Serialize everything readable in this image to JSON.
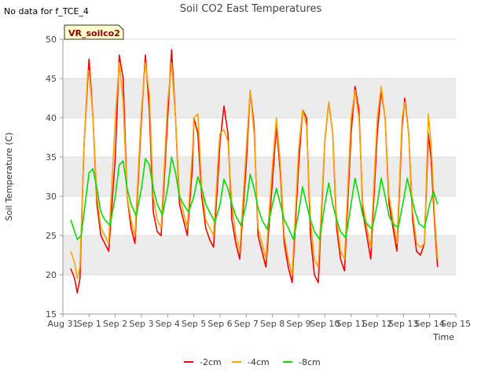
{
  "header": {
    "nodata_note": "No data for f_TCE_4"
  },
  "chart_data": {
    "type": "line",
    "title": "Soil CO2 East Temperatures",
    "xlabel": "Time",
    "ylabel": "Soil Temperature (C)",
    "badge": "VR_soilco2",
    "ylim": [
      15,
      50
    ],
    "yticks": [
      15,
      20,
      25,
      30,
      35,
      40,
      45,
      50
    ],
    "xlim": [
      0,
      15
    ],
    "xtick_positions": [
      0,
      1,
      2,
      3,
      4,
      5,
      6,
      7,
      8,
      9,
      10,
      11,
      12,
      13,
      14,
      15
    ],
    "xtick_labels": [
      "Aug 31",
      "Sep 1",
      "Sep 2",
      "Sep 3",
      "Sep 4",
      "Sep 5",
      "Sep 6",
      "Sep 7",
      "Sep 8",
      "Sep 9",
      "Sep 10",
      "Sep 11",
      "Sep 12",
      "Sep 13",
      "Sep 14",
      "Sep 15"
    ],
    "grid": true,
    "legend_position": "bottom-center",
    "series": [
      {
        "name": "-2cm",
        "color": "#ff0000",
        "x": [
          0.3,
          0.45,
          0.55,
          0.65,
          0.8,
          0.95,
          1.0,
          1.15,
          1.3,
          1.45,
          1.6,
          1.75,
          2.0,
          2.15,
          2.3,
          2.45,
          2.6,
          2.75,
          3.0,
          3.15,
          3.3,
          3.45,
          3.6,
          3.75,
          4.0,
          4.15,
          4.3,
          4.45,
          4.6,
          4.75,
          4.95,
          5.0,
          5.15,
          5.3,
          5.45,
          5.6,
          5.75,
          5.95,
          6.0,
          6.15,
          6.3,
          6.45,
          6.6,
          6.75,
          7.0,
          7.15,
          7.3,
          7.45,
          7.6,
          7.75,
          8.0,
          8.15,
          8.3,
          8.45,
          8.6,
          8.75,
          9.0,
          9.15,
          9.3,
          9.45,
          9.6,
          9.75,
          10.0,
          10.15,
          10.3,
          10.45,
          10.6,
          10.75,
          11.0,
          11.15,
          11.3,
          11.45,
          11.6,
          11.75,
          12.0,
          12.15,
          12.3,
          12.45,
          12.6,
          12.75,
          12.95,
          13.05,
          13.2,
          13.35,
          13.5,
          13.65,
          13.8,
          13.95,
          14.05,
          14.2,
          14.3
        ],
        "y": [
          20.8,
          19.5,
          17.7,
          19.5,
          36,
          45,
          47.5,
          40,
          29,
          25,
          24,
          23,
          35,
          48,
          45,
          30,
          26,
          24,
          40,
          48,
          41,
          28,
          25.5,
          25,
          40,
          48.7,
          40,
          29,
          27,
          25,
          34,
          40,
          38,
          30,
          26,
          24.5,
          23.5,
          34,
          37,
          41.5,
          38,
          27,
          24,
          22,
          34,
          43.5,
          39,
          25,
          23,
          21,
          32,
          39,
          33,
          24,
          21,
          19,
          34,
          41,
          40,
          25,
          20,
          19,
          37,
          42,
          38,
          26,
          22,
          20.5,
          38,
          44,
          41,
          28,
          25,
          22,
          38,
          43.5,
          40,
          29,
          26,
          23,
          39,
          42.5,
          38,
          27,
          23,
          22.5,
          24,
          38,
          35,
          26,
          21
        ]
      },
      {
        "name": "-4cm",
        "color": "#ffa500",
        "x": [
          0.3,
          0.45,
          0.55,
          0.65,
          0.8,
          0.95,
          1.0,
          1.15,
          1.3,
          1.45,
          1.6,
          1.75,
          2.0,
          2.15,
          2.3,
          2.45,
          2.6,
          2.75,
          3.0,
          3.15,
          3.3,
          3.45,
          3.6,
          3.75,
          4.0,
          4.15,
          4.3,
          4.45,
          4.6,
          4.75,
          4.95,
          5.0,
          5.15,
          5.3,
          5.45,
          5.6,
          5.75,
          5.95,
          6.0,
          6.15,
          6.3,
          6.45,
          6.6,
          6.75,
          7.0,
          7.15,
          7.3,
          7.45,
          7.6,
          7.75,
          8.0,
          8.15,
          8.3,
          8.45,
          8.6,
          8.75,
          9.0,
          9.15,
          9.3,
          9.45,
          9.6,
          9.75,
          10.0,
          10.15,
          10.3,
          10.45,
          10.6,
          10.75,
          11.0,
          11.15,
          11.3,
          11.45,
          11.6,
          11.75,
          12.0,
          12.15,
          12.3,
          12.45,
          12.6,
          12.75,
          12.95,
          13.05,
          13.2,
          13.35,
          13.5,
          13.65,
          13.8,
          13.95,
          14.05,
          14.2,
          14.3
        ],
        "y": [
          23,
          21.5,
          19.5,
          21,
          36,
          46,
          46,
          40,
          30,
          26,
          25,
          24,
          40,
          47,
          42,
          30,
          27,
          25,
          41,
          47,
          43,
          30,
          27,
          26,
          42,
          47,
          40,
          30,
          28,
          26,
          36,
          40,
          40.5,
          31,
          27,
          26,
          25,
          36,
          38,
          38.5,
          37,
          29,
          25,
          23,
          36,
          43.5,
          38,
          26,
          24,
          22,
          34,
          40,
          34,
          25,
          22,
          20,
          36,
          41,
          39,
          27,
          22,
          21,
          37,
          42,
          38,
          27,
          23,
          22,
          40,
          43.5,
          40,
          29,
          26,
          23.5,
          40,
          44,
          40,
          30,
          27,
          24,
          40,
          42,
          38,
          28,
          24,
          23.5,
          24,
          40.5,
          37,
          27,
          22
        ]
      },
      {
        "name": "-8cm",
        "color": "#00e000",
        "x": [
          0.3,
          0.45,
          0.55,
          0.7,
          0.85,
          1.0,
          1.15,
          1.3,
          1.45,
          1.6,
          1.8,
          2.0,
          2.15,
          2.3,
          2.45,
          2.6,
          2.8,
          3.0,
          3.15,
          3.3,
          3.45,
          3.6,
          3.8,
          4.0,
          4.15,
          4.3,
          4.45,
          4.6,
          4.8,
          5.0,
          5.15,
          5.3,
          5.45,
          5.6,
          5.8,
          6.0,
          6.15,
          6.3,
          6.45,
          6.6,
          6.8,
          7.0,
          7.15,
          7.3,
          7.45,
          7.6,
          7.8,
          8.0,
          8.15,
          8.3,
          8.45,
          8.6,
          8.8,
          9.0,
          9.15,
          9.3,
          9.45,
          9.6,
          9.8,
          10.0,
          10.15,
          10.3,
          10.45,
          10.6,
          10.8,
          11.0,
          11.15,
          11.3,
          11.45,
          11.6,
          11.8,
          12.0,
          12.15,
          12.3,
          12.45,
          12.6,
          12.8,
          13.0,
          13.15,
          13.3,
          13.45,
          13.6,
          13.8,
          14.0,
          14.15,
          14.3
        ],
        "y": [
          27,
          25.5,
          24.5,
          25,
          29,
          33,
          33.5,
          31,
          28,
          27,
          26.3,
          30,
          34,
          34.5,
          31,
          29,
          27.5,
          31,
          34.8,
          34,
          31,
          29,
          27.6,
          31,
          35,
          33,
          30,
          29,
          28,
          30,
          32.5,
          31,
          29,
          28,
          26.7,
          29,
          32.2,
          31,
          29,
          27.5,
          26.3,
          29,
          32.8,
          31,
          28.5,
          27,
          25.8,
          29,
          31,
          29,
          27,
          26,
          24.5,
          28,
          31.2,
          29,
          27,
          25.5,
          24.5,
          29,
          31.7,
          29,
          27,
          25.5,
          24.7,
          29,
          32.3,
          30,
          27.5,
          26.5,
          25.8,
          29,
          32.3,
          30,
          27.5,
          26.5,
          26,
          29.5,
          32.3,
          30,
          28,
          26.5,
          26,
          29,
          30.6,
          29
        ]
      }
    ]
  }
}
